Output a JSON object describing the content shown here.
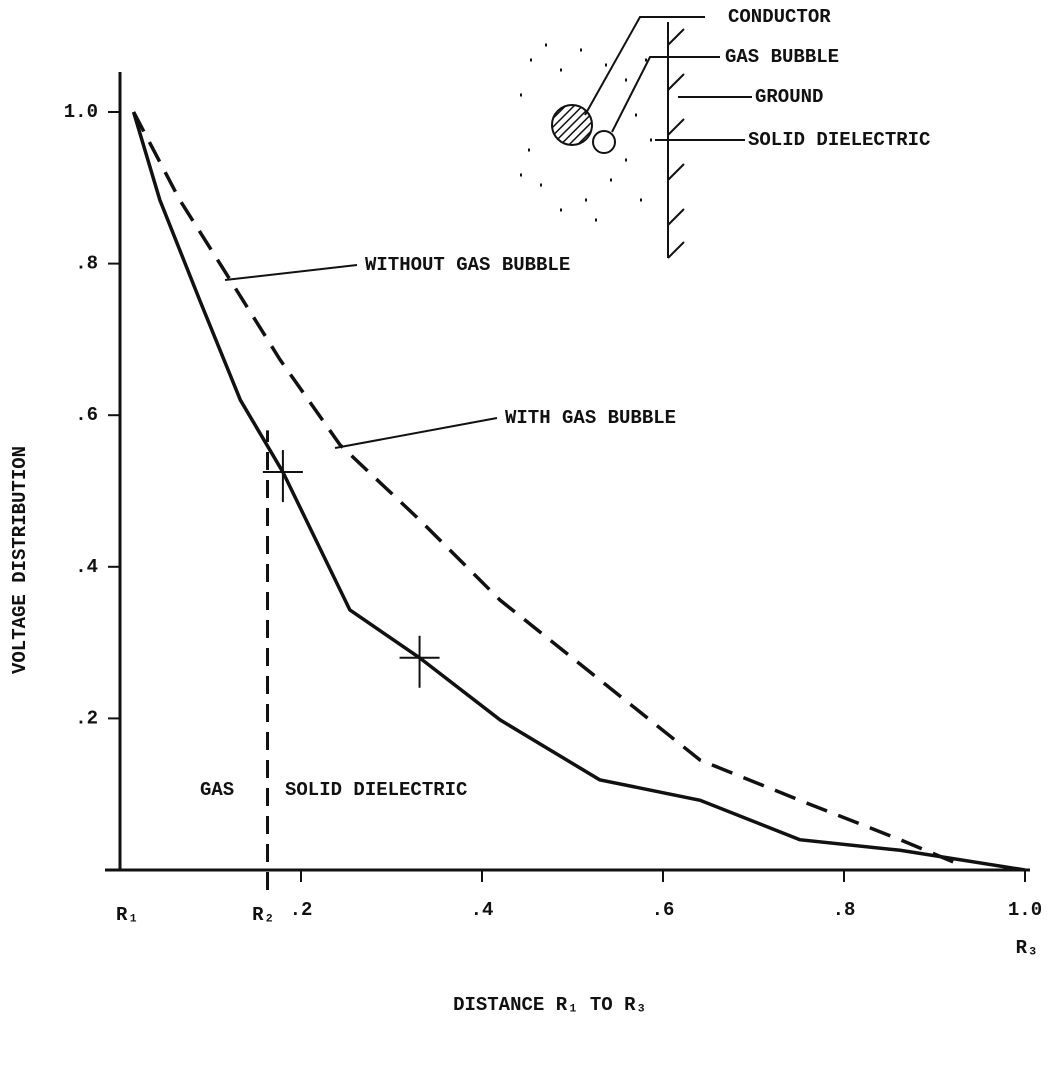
{
  "chart_data": {
    "type": "line",
    "x_label": "DISTANCE R₁ TO R₃",
    "y_label": "VOLTAGE DISTRIBUTION",
    "xlim": [
      0,
      1.0
    ],
    "ylim": [
      0,
      1.0
    ],
    "xticks": [
      {
        "value": 0.2,
        "label": ".2"
      },
      {
        "value": 0.4,
        "label": ".4"
      },
      {
        "value": 0.6,
        "label": ".6"
      },
      {
        "value": 0.8,
        "label": ".8"
      },
      {
        "value": 1.0,
        "label": "1.0"
      }
    ],
    "yticks": [
      {
        "value": 0.2,
        "label": ".2"
      },
      {
        "value": 0.4,
        "label": ".4"
      },
      {
        "value": 0.6,
        "label": ".6"
      },
      {
        "value": 0.8,
        "label": ".8"
      },
      {
        "value": 1.0,
        "label": "1.0"
      }
    ],
    "series": [
      {
        "name": "WITH GAS BUBBLE",
        "color": "#111111",
        "style": "solid",
        "x": [
          0.015,
          0.044,
          0.088,
          0.133,
          0.18,
          0.254,
          0.331,
          0.42,
          0.53,
          0.641,
          0.751,
          0.862,
          1.0
        ],
        "values": [
          1.0,
          0.884,
          0.752,
          0.62,
          0.525,
          0.343,
          0.28,
          0.198,
          0.119,
          0.092,
          0.04,
          0.026,
          0
        ]
      },
      {
        "name": "WITHOUT GAS BUBBLE",
        "color": "#111111",
        "style": "dashed",
        "x": [
          0.015,
          0.066,
          0.122,
          0.177,
          0.243,
          0.331,
          0.42,
          0.53,
          0.641,
          0.751,
          0.862,
          0.928
        ],
        "values": [
          1.0,
          0.884,
          0.778,
          0.673,
          0.561,
          0.462,
          0.356,
          0.251,
          0.145,
          0.092,
          0.04,
          0.007
        ]
      }
    ],
    "marked_points": {
      "x": [
        0.18,
        0.331
      ],
      "values": [
        0.525,
        0.28
      ]
    },
    "boundary": {
      "x": 0.163,
      "top": 0.58
    },
    "radius_labels": [
      {
        "text": "R₁",
        "x": 0
      },
      {
        "text": "R₂",
        "x": 0.163
      },
      {
        "text": "R₃",
        "x": 1.0
      }
    ],
    "region_labels": [
      "GAS",
      "SOLID DIELECTRIC"
    ],
    "inset_labels": [
      "CONDUCTOR",
      "GAS BUBBLE",
      "GROUND",
      "SOLID DIELECTRIC"
    ]
  }
}
